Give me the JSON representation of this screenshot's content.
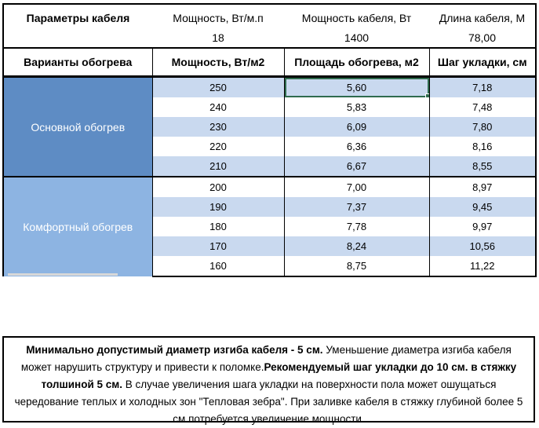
{
  "params_block": {
    "title": "Параметры кабеля",
    "columns": [
      {
        "label": "Мощность, Вт/м.п",
        "value": "18"
      },
      {
        "label": "Мощность кабеля, Вт",
        "value": "1400"
      },
      {
        "label": "Длина кабеля, М",
        "value": "78,00"
      }
    ]
  },
  "heating_table": {
    "headers": {
      "variants": "Варианты обогрева",
      "power": "Мощность, Вт/м2",
      "area": "Площадь обогрева, м2",
      "step": "Шаг укладки, см"
    },
    "groups": [
      {
        "label": "Основной обогрев",
        "color": "#5e8cc4",
        "rows": 5
      },
      {
        "label": "Комфортный обогрев",
        "color": "#8db4e2",
        "rows": 5
      }
    ],
    "rows": [
      {
        "power": "250",
        "area": "5,60",
        "step": "7,18"
      },
      {
        "power": "240",
        "area": "5,83",
        "step": "7,48"
      },
      {
        "power": "230",
        "area": "6,09",
        "step": "7,80"
      },
      {
        "power": "220",
        "area": "6,36",
        "step": "8,16"
      },
      {
        "power": "210",
        "area": "6,67",
        "step": "8,55"
      },
      {
        "power": "200",
        "area": "7,00",
        "step": "8,97"
      },
      {
        "power": "190",
        "area": "7,37",
        "step": "9,45"
      },
      {
        "power": "180",
        "area": "7,78",
        "step": "9,97"
      },
      {
        "power": "170",
        "area": "8,24",
        "step": "10,56"
      },
      {
        "power": "160",
        "area": "8,75",
        "step": "11,22"
      }
    ],
    "selected_cell": {
      "row_index": 0,
      "column": "area",
      "value": "5,60",
      "border_color": "#2f6b4e"
    }
  },
  "note": {
    "segments": [
      {
        "bold": true,
        "text": "Минимально допустимый диаметр изгиба кабеля - 5 см."
      },
      {
        "bold": false,
        "text": "  Уменьшение диаметра изгиба кабеля может нарушить структуру и привести к поломке."
      },
      {
        "bold": true,
        "text": "Рекомендуемый шаг укладки до 10 см. в стяжку толшиной 5 см."
      },
      {
        "bold": false,
        "text": " В  случае увеличения шага укладки на поверхности пола может ошущаться чередование теплых и холодных зон \"Тепловая зебра\". При заливке кабеля в стяжку глубиной более 5 см потребуется увеличение мощности."
      }
    ]
  },
  "colors": {
    "group_primary": "#5e8cc4",
    "group_secondary": "#8db4e2",
    "row_stripe": "#c9d9ef",
    "selection_green": "#2f6b4e",
    "border": "#000000"
  }
}
